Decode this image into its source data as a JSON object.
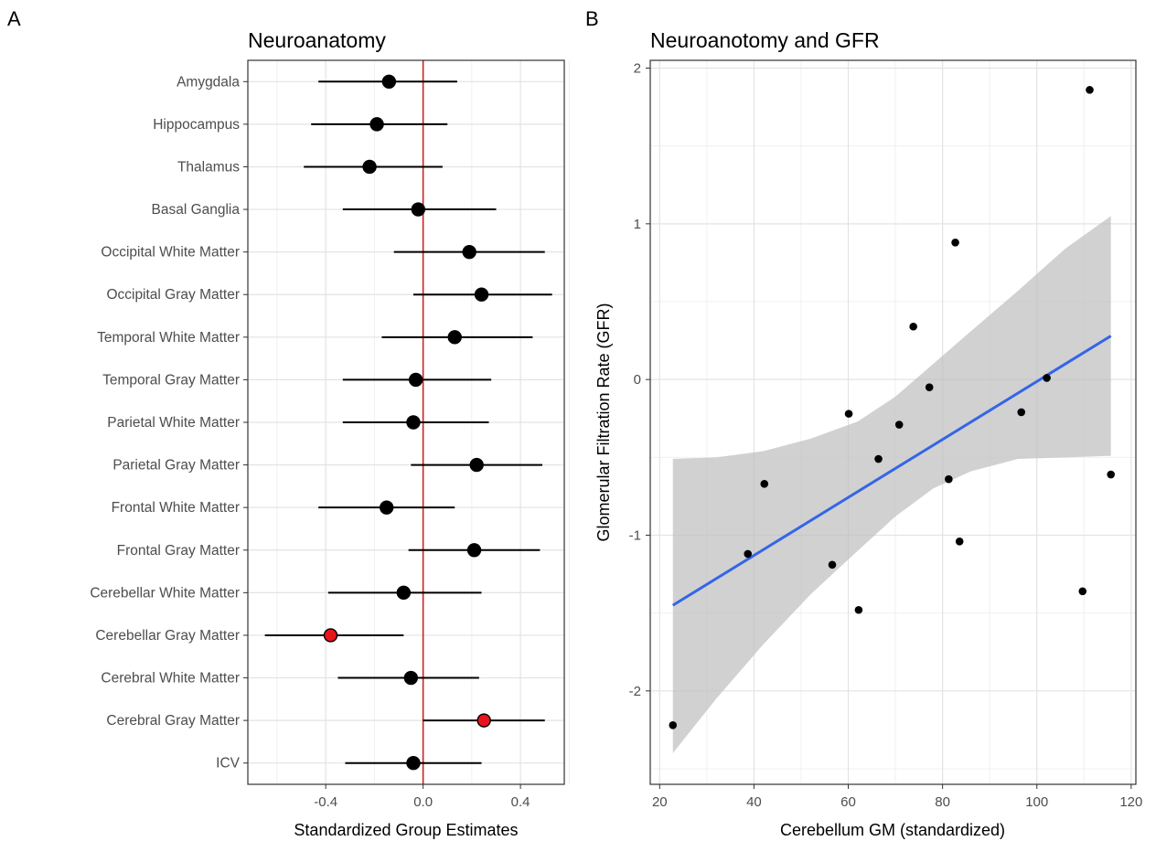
{
  "chart_data": [
    {
      "panel": "A",
      "type": "forest",
      "title": "Neuroanatomy",
      "xlabel": "Standardized Group Estimates",
      "ylabel": "",
      "xlim": [
        -0.72,
        0.58
      ],
      "xticks": [
        -0.4,
        0.0,
        0.4
      ],
      "xtick_labels": [
        "-0.4",
        "0.0",
        "0.4"
      ],
      "reference_line": 0,
      "reference_color": "#cc2222",
      "grid": true,
      "highlight_color": "#e8141b",
      "point_color": "#000000",
      "rows": [
        {
          "label": "Amygdala",
          "estimate": -0.14,
          "lower": -0.43,
          "upper": 0.14,
          "highlight": false
        },
        {
          "label": "Hippocampus",
          "estimate": -0.19,
          "lower": -0.46,
          "upper": 0.1,
          "highlight": false
        },
        {
          "label": "Thalamus",
          "estimate": -0.22,
          "lower": -0.49,
          "upper": 0.08,
          "highlight": false
        },
        {
          "label": "Basal Ganglia",
          "estimate": -0.02,
          "lower": -0.33,
          "upper": 0.3,
          "highlight": false
        },
        {
          "label": "Occipital White Matter",
          "estimate": 0.19,
          "lower": -0.12,
          "upper": 0.5,
          "highlight": false
        },
        {
          "label": "Occipital Gray Matter",
          "estimate": 0.24,
          "lower": -0.04,
          "upper": 0.53,
          "highlight": false
        },
        {
          "label": "Temporal White Matter",
          "estimate": 0.13,
          "lower": -0.17,
          "upper": 0.45,
          "highlight": false
        },
        {
          "label": "Temporal Gray Matter",
          "estimate": -0.03,
          "lower": -0.33,
          "upper": 0.28,
          "highlight": false
        },
        {
          "label": "Parietal White Matter",
          "estimate": -0.04,
          "lower": -0.33,
          "upper": 0.27,
          "highlight": false
        },
        {
          "label": "Parietal Gray Matter",
          "estimate": 0.22,
          "lower": -0.05,
          "upper": 0.49,
          "highlight": false
        },
        {
          "label": "Frontal White Matter",
          "estimate": -0.15,
          "lower": -0.43,
          "upper": 0.13,
          "highlight": false
        },
        {
          "label": "Frontal Gray Matter",
          "estimate": 0.21,
          "lower": -0.06,
          "upper": 0.48,
          "highlight": false
        },
        {
          "label": "Cerebellar White Matter",
          "estimate": -0.08,
          "lower": -0.39,
          "upper": 0.24,
          "highlight": false
        },
        {
          "label": "Cerebellar Gray Matter",
          "estimate": -0.38,
          "lower": -0.65,
          "upper": -0.08,
          "highlight": true
        },
        {
          "label": "Cerebral White Matter",
          "estimate": -0.05,
          "lower": -0.35,
          "upper": 0.23,
          "highlight": false
        },
        {
          "label": "Cerebral Gray Matter",
          "estimate": 0.25,
          "lower": 0.0,
          "upper": 0.5,
          "highlight": true
        },
        {
          "label": "ICV",
          "estimate": -0.04,
          "lower": -0.32,
          "upper": 0.24,
          "highlight": false
        }
      ]
    },
    {
      "panel": "B",
      "type": "scatter",
      "title": "Neuroanotomy and GFR",
      "xlabel": "Cerebellum GM (standardized)",
      "ylabel": "Glomerular Filtration Rate (GFR)",
      "xlim": [
        18,
        121
      ],
      "ylim": [
        -2.6,
        2.05
      ],
      "xticks": [
        20,
        40,
        60,
        80,
        100,
        120
      ],
      "yticks": [
        -2,
        -1,
        0,
        1,
        2
      ],
      "grid": true,
      "point_color": "#000000",
      "fit_color": "#3366e6",
      "band_color": "#bdbdbd",
      "points": [
        {
          "x": 22.8,
          "y": -2.22
        },
        {
          "x": 38.7,
          "y": -1.12
        },
        {
          "x": 42.2,
          "y": -0.67
        },
        {
          "x": 56.6,
          "y": -1.19
        },
        {
          "x": 60.1,
          "y": -0.22
        },
        {
          "x": 62.2,
          "y": -1.48
        },
        {
          "x": 66.4,
          "y": -0.51
        },
        {
          "x": 70.8,
          "y": -0.29
        },
        {
          "x": 73.8,
          "y": 0.34
        },
        {
          "x": 77.2,
          "y": -0.05
        },
        {
          "x": 81.3,
          "y": -0.64
        },
        {
          "x": 82.7,
          "y": 0.88
        },
        {
          "x": 83.6,
          "y": -1.04
        },
        {
          "x": 96.7,
          "y": -0.21
        },
        {
          "x": 102.1,
          "y": 0.01
        },
        {
          "x": 109.7,
          "y": -1.36
        },
        {
          "x": 111.2,
          "y": 1.86
        },
        {
          "x": 115.7,
          "y": -0.61
        }
      ],
      "fit_line": {
        "x": [
          22.8,
          115.7
        ],
        "y": [
          -1.45,
          0.28
        ]
      },
      "confidence_band": [
        {
          "x": 22.8,
          "lower": -2.4,
          "upper": -0.51
        },
        {
          "x": 32.0,
          "lower": -2.05,
          "upper": -0.5
        },
        {
          "x": 42.0,
          "lower": -1.7,
          "upper": -0.46
        },
        {
          "x": 52.0,
          "lower": -1.38,
          "upper": -0.38
        },
        {
          "x": 62.0,
          "lower": -1.1,
          "upper": -0.27
        },
        {
          "x": 70.0,
          "lower": -0.88,
          "upper": -0.11
        },
        {
          "x": 78.0,
          "lower": -0.7,
          "upper": 0.1
        },
        {
          "x": 86.0,
          "lower": -0.59,
          "upper": 0.31
        },
        {
          "x": 96.0,
          "lower": -0.51,
          "upper": 0.57
        },
        {
          "x": 106.0,
          "lower": -0.5,
          "upper": 0.84
        },
        {
          "x": 115.7,
          "lower": -0.49,
          "upper": 1.05
        }
      ]
    }
  ],
  "panels": {
    "a_letter": "A",
    "b_letter": "B"
  }
}
